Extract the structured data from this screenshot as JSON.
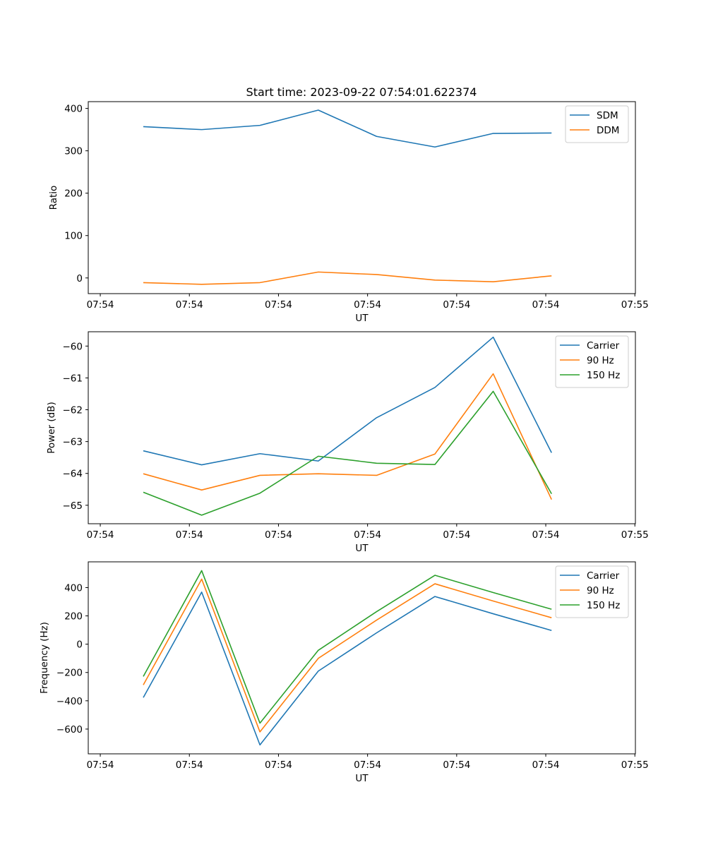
{
  "figure_title": "Start time: 2023-09-22 07:54:01.622374",
  "chart_data": [
    {
      "type": "line",
      "title": "Start time: 2023-09-22 07:54:01.622374",
      "xlabel": "UT",
      "ylabel": "Ratio",
      "x_ticks": [
        0,
        1,
        2,
        3,
        4,
        5,
        6
      ],
      "x_tick_labels": [
        "07:54",
        "07:54",
        "07:54",
        "07:54",
        "07:54",
        "07:54",
        "07:55"
      ],
      "xlim": [
        -0.135,
        6.006
      ],
      "y_ticks": [
        0,
        100,
        200,
        300,
        400
      ],
      "y_tick_labels": [
        "0",
        "100",
        "200",
        "300",
        "400"
      ],
      "ylim": [
        -37,
        416
      ],
      "x": [
        0.483,
        1.138,
        1.792,
        2.447,
        3.101,
        3.756,
        4.41,
        5.065
      ],
      "legend": "top-right",
      "grid": false,
      "series": [
        {
          "name": "SDM",
          "color": "#1f77b4",
          "values": [
            357,
            350,
            360,
            396,
            334,
            309,
            341,
            342
          ]
        },
        {
          "name": "DDM",
          "color": "#ff7f0e",
          "values": [
            -11,
            -15,
            -11,
            14,
            8,
            -5,
            -9,
            5
          ]
        }
      ]
    },
    {
      "type": "line",
      "title": "",
      "xlabel": "UT",
      "ylabel": "Power (dB)",
      "x_ticks": [
        0,
        1,
        2,
        3,
        4,
        5,
        6
      ],
      "x_tick_labels": [
        "07:54",
        "07:54",
        "07:54",
        "07:54",
        "07:54",
        "07:54",
        "07:55"
      ],
      "xlim": [
        -0.135,
        6.006
      ],
      "y_ticks": [
        -65,
        -64,
        -63,
        -62,
        -61,
        -60
      ],
      "y_tick_labels": [
        "−65",
        "−64",
        "−63",
        "−62",
        "−61",
        "−60"
      ],
      "ylim": [
        -65.58,
        -59.55
      ],
      "x": [
        0.483,
        1.138,
        1.792,
        2.447,
        3.101,
        3.756,
        4.41,
        5.065
      ],
      "legend": "top-right",
      "grid": false,
      "series": [
        {
          "name": "Carrier",
          "color": "#1f77b4",
          "values": [
            -63.29,
            -63.73,
            -63.38,
            -63.61,
            -62.25,
            -61.3,
            -59.72,
            -63.35
          ]
        },
        {
          "name": "90 Hz",
          "color": "#ff7f0e",
          "values": [
            -64.01,
            -64.52,
            -64.06,
            -64.01,
            -64.06,
            -63.39,
            -60.87,
            -64.82
          ]
        },
        {
          "name": "150 Hz",
          "color": "#2ca02c",
          "values": [
            -64.59,
            -65.31,
            -64.62,
            -63.46,
            -63.68,
            -63.72,
            -61.42,
            -64.64
          ]
        }
      ]
    },
    {
      "type": "line",
      "title": "",
      "xlabel": "UT",
      "ylabel": "Frequency (Hz)",
      "x_ticks": [
        0,
        1,
        2,
        3,
        4,
        5,
        6
      ],
      "x_tick_labels": [
        "07:54",
        "07:54",
        "07:54",
        "07:54",
        "07:54",
        "07:54",
        "07:55"
      ],
      "xlim": [
        -0.135,
        6.006
      ],
      "y_ticks": [
        -600,
        -400,
        -200,
        0,
        200,
        400
      ],
      "y_tick_labels": [
        "−600",
        "−400",
        "−200",
        "0",
        "200",
        "400"
      ],
      "ylim": [
        -775,
        582
      ],
      "x": [
        0.483,
        1.138,
        1.792,
        2.447,
        3.101,
        3.756,
        4.41,
        5.065
      ],
      "legend": "top-right",
      "grid": false,
      "series": [
        {
          "name": "Carrier",
          "color": "#1f77b4",
          "values": [
            -377,
            368,
            -712,
            -190,
            80,
            337,
            215,
            97
          ]
        },
        {
          "name": "90 Hz",
          "color": "#ff7f0e",
          "values": [
            -288,
            460,
            -620,
            -100,
            170,
            427,
            305,
            187
          ]
        },
        {
          "name": "150 Hz",
          "color": "#2ca02c",
          "values": [
            -228,
            520,
            -558,
            -43,
            230,
            487,
            365,
            247
          ]
        }
      ]
    }
  ]
}
